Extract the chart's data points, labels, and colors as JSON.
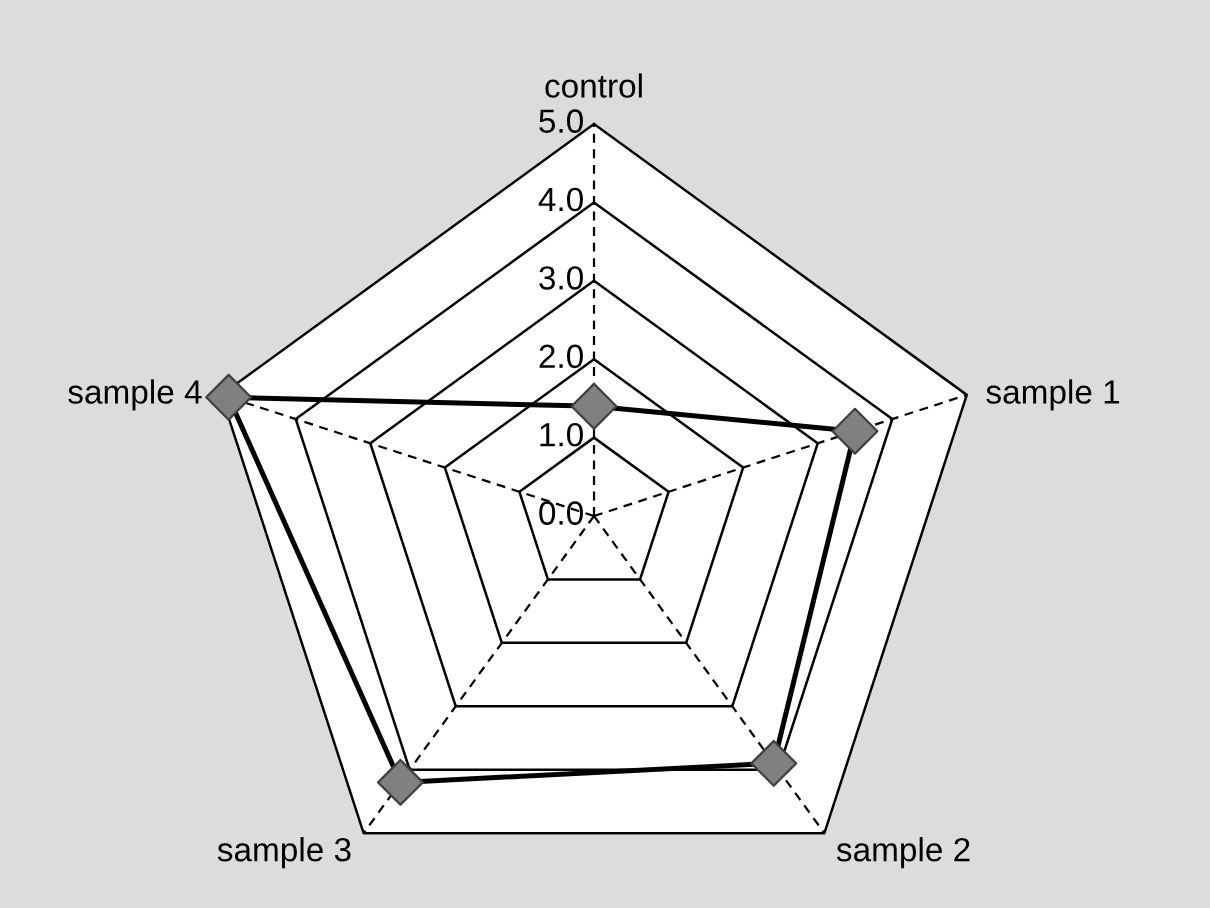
{
  "chart_data": {
    "type": "radar",
    "categories": [
      "control",
      "sample 1",
      "sample 2",
      "sample 3",
      "sample 4"
    ],
    "series": [
      {
        "color": "#000000",
        "values": [
          1.4,
          3.5,
          3.9,
          4.2,
          4.9
        ]
      }
    ],
    "ylim": [
      0,
      5
    ],
    "yticks": [
      {
        "value": 0,
        "label": "0.0"
      },
      {
        "value": 1,
        "label": "1.0"
      },
      {
        "value": 2,
        "label": "2.0"
      },
      {
        "value": 3,
        "label": "3.0"
      },
      {
        "value": 4,
        "label": "4.0"
      },
      {
        "value": 5,
        "label": "5.0"
      }
    ],
    "grid": true,
    "marker": "diamond",
    "line_style": "solid"
  }
}
